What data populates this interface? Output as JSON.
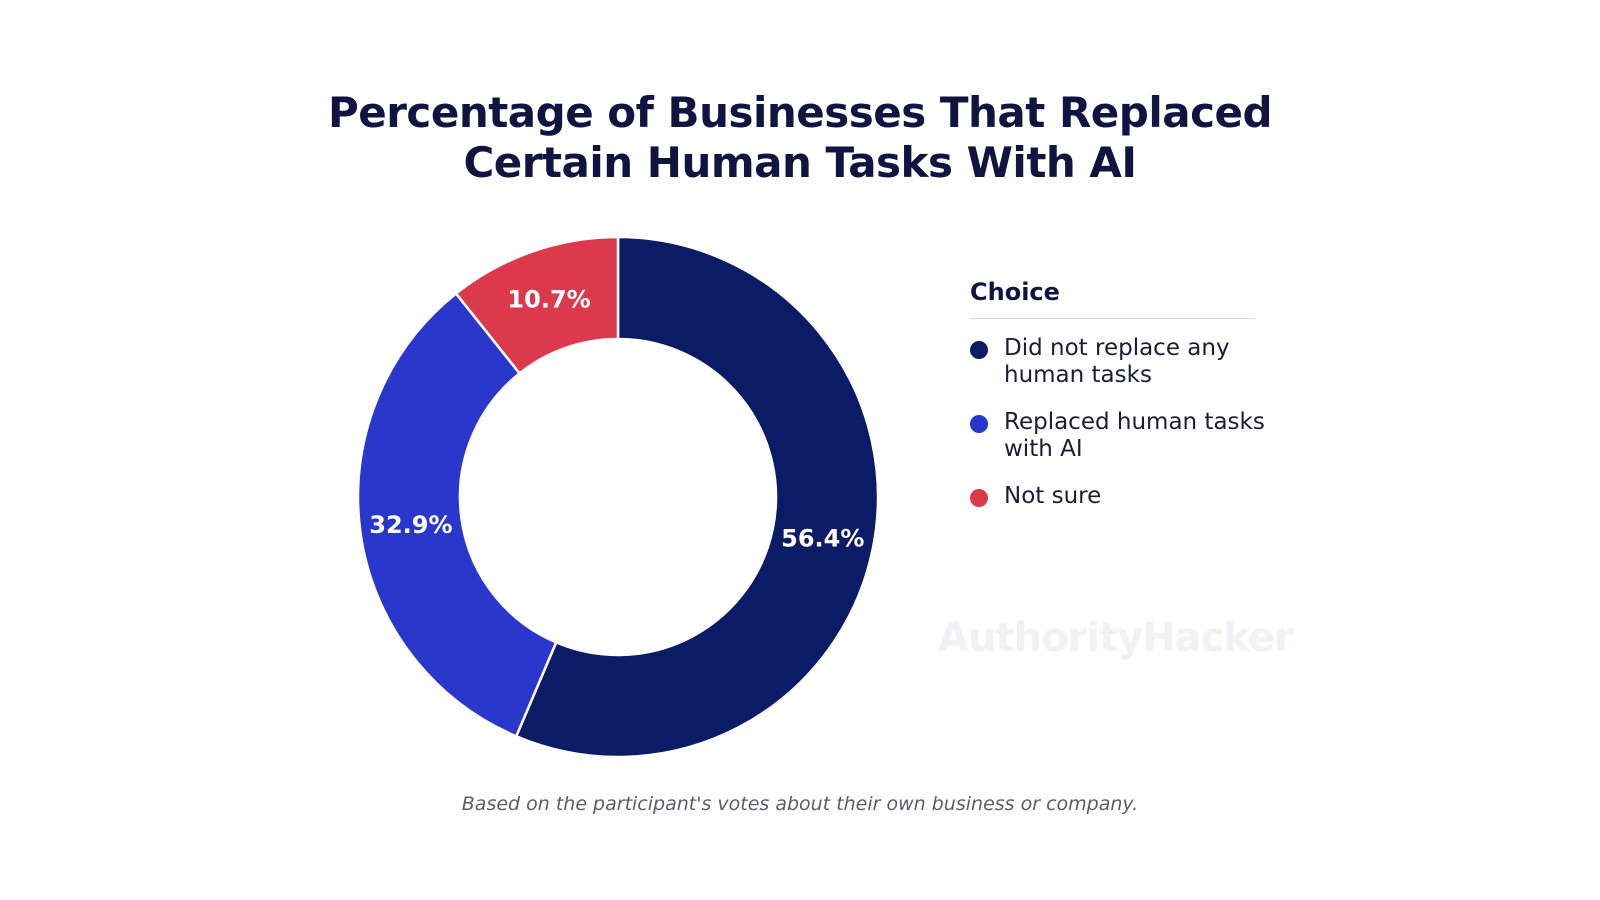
{
  "chart_data": {
    "type": "pie",
    "title_lines": [
      "Percentage of Businesses That Replaced",
      "Certain Human Tasks With AI"
    ],
    "legend_title": "Choice",
    "legend_placement": "right",
    "donut": true,
    "slices": [
      {
        "label": "Did not replace any human tasks",
        "value": 56.4,
        "value_label": "56.4%",
        "color": "#0b1b66"
      },
      {
        "label": "Replaced human tasks with AI",
        "value": 32.9,
        "value_label": "32.9%",
        "color": "#2a37cc"
      },
      {
        "label": "Not sure",
        "value": 10.7,
        "value_label": "10.7%",
        "color": "#dc3a4c"
      }
    ],
    "note": "Based on the participant's votes about their own business or company."
  },
  "watermark": "AuthorityHacker"
}
